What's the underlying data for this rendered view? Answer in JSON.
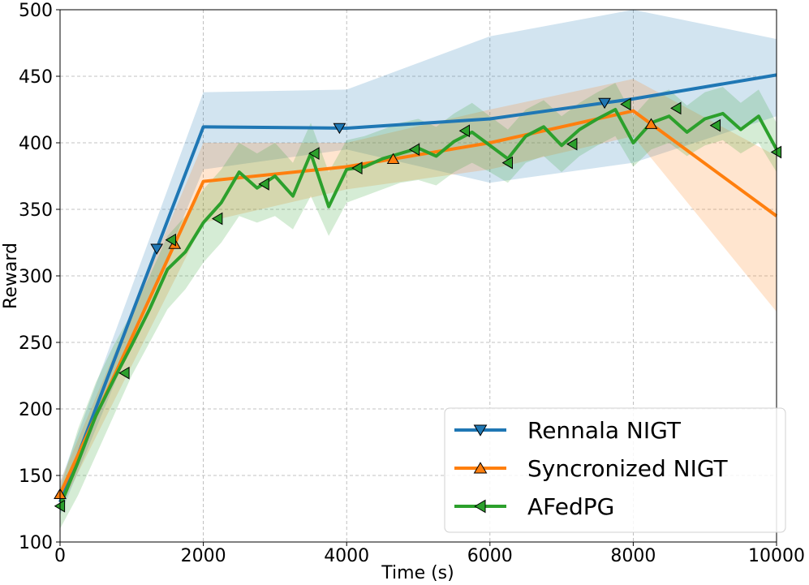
{
  "chart_data": {
    "type": "line",
    "title": "",
    "xlabel": "Time (s)",
    "ylabel": "Reward",
    "xlim": [
      0,
      10000
    ],
    "ylim": [
      100,
      500
    ],
    "xticks": [
      0,
      2000,
      4000,
      6000,
      8000,
      10000
    ],
    "yticks": [
      100,
      150,
      200,
      250,
      300,
      350,
      400,
      450,
      500
    ],
    "grid": true,
    "legend_position": "bottom-right",
    "series": [
      {
        "name": "Rennala NIGT",
        "color": "#1f77b4",
        "marker": "triangle-down",
        "x": [
          0,
          2000,
          4000,
          6000,
          8000,
          10000
        ],
        "y": [
          130,
          412,
          411,
          418,
          433,
          451
        ],
        "band_lower": [
          120,
          380,
          395,
          370,
          385,
          420
        ],
        "band_upper": [
          145,
          438,
          440,
          480,
          500,
          478
        ],
        "marker_x": [
          1350,
          3900,
          7600
        ]
      },
      {
        "name": "Syncronized NIGT",
        "color": "#ff7f0e",
        "marker": "triangle-up",
        "x": [
          0,
          2000,
          4000,
          6000,
          8000,
          10000
        ],
        "y": [
          136,
          371,
          382,
          400,
          424,
          345
        ],
        "band_lower": [
          125,
          340,
          365,
          380,
          405,
          273
        ],
        "band_upper": [
          145,
          400,
          400,
          425,
          448,
          390
        ],
        "marker_x": [
          0,
          1600,
          4650,
          8250
        ]
      },
      {
        "name": "AFedPG",
        "color": "#2ca02c",
        "marker": "triangle-left",
        "x": [
          0,
          250,
          500,
          750,
          1000,
          1250,
          1500,
          1750,
          2000,
          2250,
          2500,
          2750,
          3000,
          3250,
          3500,
          3750,
          4000,
          4250,
          4500,
          4750,
          5000,
          5250,
          5500,
          5750,
          6000,
          6250,
          6500,
          6750,
          7000,
          7250,
          7500,
          7750,
          8000,
          8250,
          8500,
          8750,
          9000,
          9250,
          9500,
          9750,
          10000
        ],
        "y": [
          127,
          160,
          195,
          222,
          248,
          275,
          305,
          318,
          340,
          355,
          378,
          366,
          375,
          360,
          392,
          352,
          380,
          382,
          388,
          392,
          396,
          390,
          401,
          408,
          398,
          388,
          405,
          412,
          398,
          410,
          418,
          425,
          400,
          415,
          420,
          408,
          418,
          422,
          410,
          420,
          395
        ],
        "band_lower": [
          110,
          135,
          165,
          195,
          225,
          250,
          275,
          290,
          310,
          325,
          345,
          340,
          345,
          335,
          360,
          330,
          355,
          360,
          365,
          370,
          372,
          368,
          378,
          385,
          378,
          370,
          385,
          390,
          378,
          390,
          398,
          405,
          382,
          395,
          400,
          390,
          398,
          402,
          392,
          400,
          378
        ],
        "band_upper": [
          140,
          185,
          220,
          248,
          272,
          300,
          330,
          345,
          365,
          380,
          400,
          392,
          400,
          385,
          415,
          378,
          402,
          405,
          410,
          415,
          418,
          412,
          422,
          430,
          420,
          410,
          425,
          432,
          420,
          430,
          438,
          445,
          420,
          435,
          440,
          428,
          438,
          442,
          430,
          440,
          415
        ],
        "marker_x": [
          0,
          900,
          1550,
          2200,
          2850,
          3550,
          4150,
          4950,
          5650,
          6250,
          7150,
          7900,
          8600,
          9150,
          10000
        ],
        "marker_y": [
          127,
          227,
          327,
          343,
          369,
          392,
          381,
          395,
          409,
          385,
          399,
          429,
          426,
          413,
          393
        ]
      }
    ]
  }
}
